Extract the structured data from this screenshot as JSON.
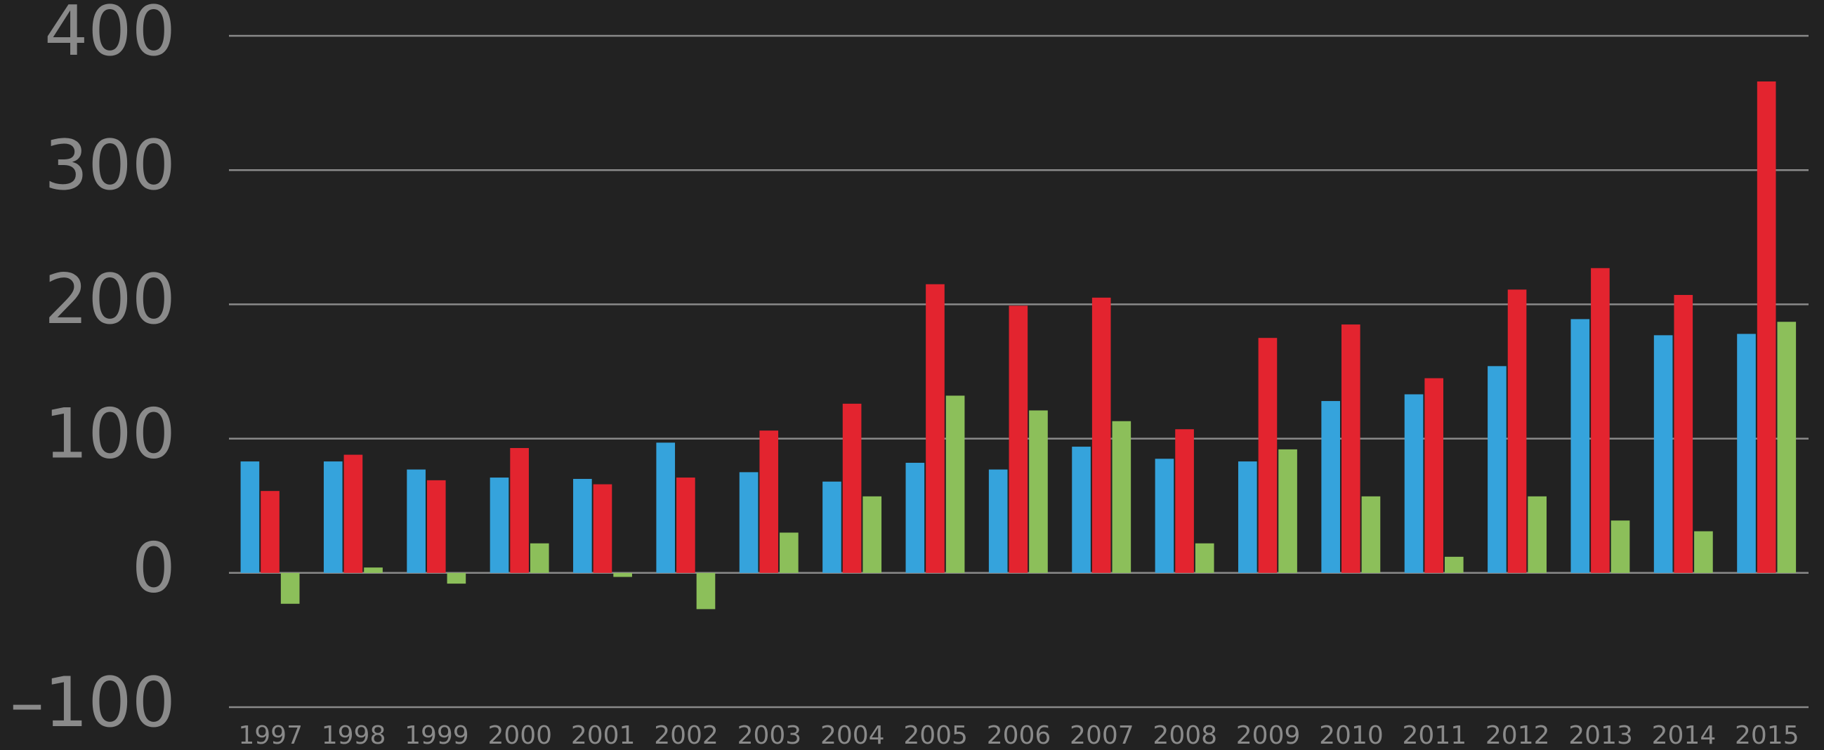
{
  "chart_data": {
    "type": "bar",
    "categories": [
      "1997",
      "1998",
      "1999",
      "2000",
      "2001",
      "2002",
      "2003",
      "2004",
      "2005",
      "2006",
      "2007",
      "2008",
      "2009",
      "2010",
      "2011",
      "2012",
      "2013",
      "2014",
      "2015"
    ],
    "series": [
      {
        "color": "#35a3dc",
        "values": [
          83,
          83,
          77,
          71,
          70,
          97,
          75,
          68,
          82,
          77,
          94,
          85,
          83,
          128,
          133,
          154,
          189,
          177,
          178
        ]
      },
      {
        "color": "#e3242f",
        "values": [
          61,
          88,
          69,
          93,
          66,
          71,
          106,
          126,
          215,
          199,
          205,
          107,
          175,
          185,
          145,
          211,
          227,
          207,
          366
        ]
      },
      {
        "color": "#8cbf5a",
        "values": [
          -23,
          4,
          -8,
          22,
          -3,
          -27,
          30,
          57,
          132,
          121,
          113,
          22,
          92,
          57,
          12,
          57,
          39,
          31,
          187
        ]
      }
    ],
    "ylim": [
      -100,
      400
    ],
    "yticks": [
      {
        "value": -100,
        "label": "–100"
      },
      0,
      100,
      200,
      300,
      400
    ],
    "grid": true
  }
}
